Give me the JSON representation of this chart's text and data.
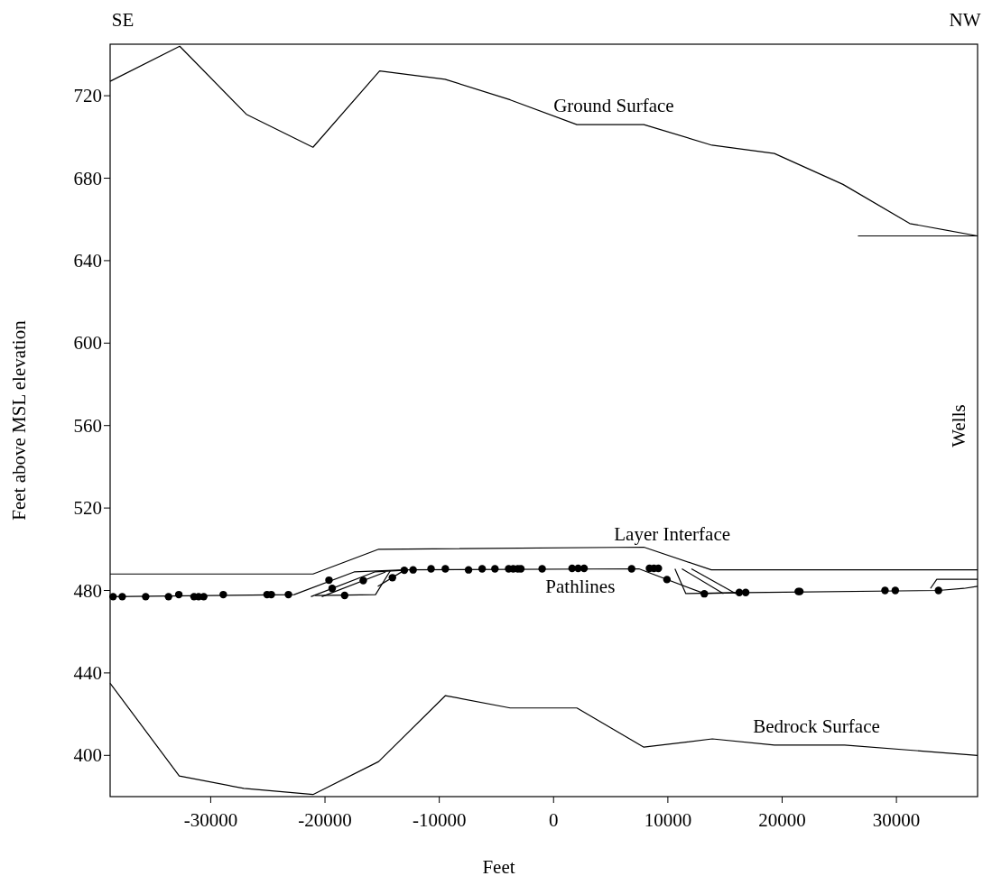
{
  "chart_data": {
    "type": "line",
    "xlabel": "Feet",
    "ylabel": "Feet above MSL elevation",
    "xlim": [
      -38800,
      37100
    ],
    "ylim": [
      380,
      745
    ],
    "xticks": [
      -30000,
      -20000,
      -10000,
      0,
      10000,
      20000,
      30000
    ],
    "yticks": [
      400,
      440,
      480,
      520,
      560,
      600,
      640,
      680,
      720
    ],
    "grid": false,
    "annotations": [
      "SE",
      "NW",
      "Wells"
    ],
    "series": [
      {
        "name": "Ground Surface",
        "color": "#000000",
        "x": [
          -38800,
          -32710,
          -26880,
          -21050,
          -15220,
          -9500,
          -3790,
          2040,
          7900,
          13860,
          19320,
          25320,
          31170,
          37100
        ],
        "values": [
          727,
          744,
          711,
          695,
          732,
          728,
          718,
          706,
          706,
          696,
          692,
          677,
          658,
          652
        ]
      },
      {
        "color": "#000000",
        "x": [
          26630,
          37100
        ],
        "values": [
          652,
          652
        ]
      },
      {
        "name": "Layer Interface",
        "color": "#000000",
        "x": [
          -38800,
          -21050,
          -15300,
          7900,
          13800,
          37100
        ],
        "values": [
          488,
          488,
          500,
          501,
          490,
          490
        ]
      },
      {
        "name": "Bedrock Surface",
        "color": "#000000",
        "x": [
          -38800,
          -32750,
          -27100,
          -21050,
          -15300,
          -9460,
          -3790,
          2040,
          7900,
          13890,
          19320,
          25460,
          37100
        ],
        "values": [
          435,
          390,
          384,
          381,
          397,
          429,
          423,
          423,
          404,
          408,
          405,
          405,
          400
        ]
      },
      {
        "name": "Pathlines",
        "color": "#000000",
        "x": [
          -38800,
          -22700,
          -17450,
          -13060,
          7470,
          13190,
          16800,
          33680,
          35900,
          37100
        ],
        "values": [
          477,
          478,
          489,
          490,
          490.5,
          478.5,
          479,
          480,
          481,
          482
        ]
      },
      {
        "color": "#000000",
        "x": [
          -21230,
          -15650,
          -13060
        ],
        "values": [
          477,
          489,
          489.8
        ]
      },
      {
        "color": "#000000",
        "x": [
          -20280,
          -14700
        ],
        "values": [
          477,
          489
        ]
      },
      {
        "color": "#000000",
        "x": [
          -20860,
          -15580,
          -14290
        ],
        "values": [
          477.5,
          478,
          489.5
        ]
      },
      {
        "color": "#000000",
        "x": [
          -15380,
          -13060
        ],
        "values": [
          482,
          489.8
        ]
      },
      {
        "color": "#000000",
        "x": [
          10620,
          11570,
          16250
        ],
        "values": [
          490.5,
          478.5,
          479
        ]
      },
      {
        "color": "#000000",
        "x": [
          11230,
          14860
        ],
        "values": [
          490.5,
          478.5
        ]
      },
      {
        "color": "#000000",
        "x": [
          12060,
          15950
        ],
        "values": [
          490.5,
          478.5
        ]
      },
      {
        "color": "#000000",
        "x": [
          32980,
          33530,
          37100
        ],
        "values": [
          481,
          485.4,
          485.4
        ]
      },
      {
        "type": "scatter",
        "color": "#000000",
        "marker": "circle",
        "x": [
          -38540,
          -37740,
          -35690,
          -33690,
          -32790,
          -31460,
          -31060,
          -30610,
          -28900,
          -25070,
          -24700,
          -23200,
          -19650,
          -19370,
          -18280,
          -16650,
          -14100,
          -13060,
          -12290,
          -10720,
          -9470,
          -7440,
          -6250,
          -5130,
          -3930,
          -3530,
          -3130,
          -2860,
          -1000,
          1620,
          2150,
          2670,
          6830,
          8390,
          8780,
          9170,
          9920,
          13190,
          16250,
          16810,
          21410,
          21550,
          29000,
          29900,
          33680
        ],
        "values": [
          477,
          477,
          477,
          477,
          478,
          477,
          477,
          477,
          478,
          478,
          478,
          478,
          485,
          481,
          477.6,
          484.8,
          486.2,
          489.8,
          490,
          490.5,
          490.5,
          490,
          490.5,
          490.5,
          490.5,
          490.5,
          490.5,
          490.5,
          490.5,
          490.7,
          490.7,
          490.7,
          490.5,
          490.7,
          490.7,
          490.7,
          485.3,
          478.4,
          479,
          479,
          479.5,
          479.5,
          480,
          480,
          480
        ]
      }
    ]
  }
}
